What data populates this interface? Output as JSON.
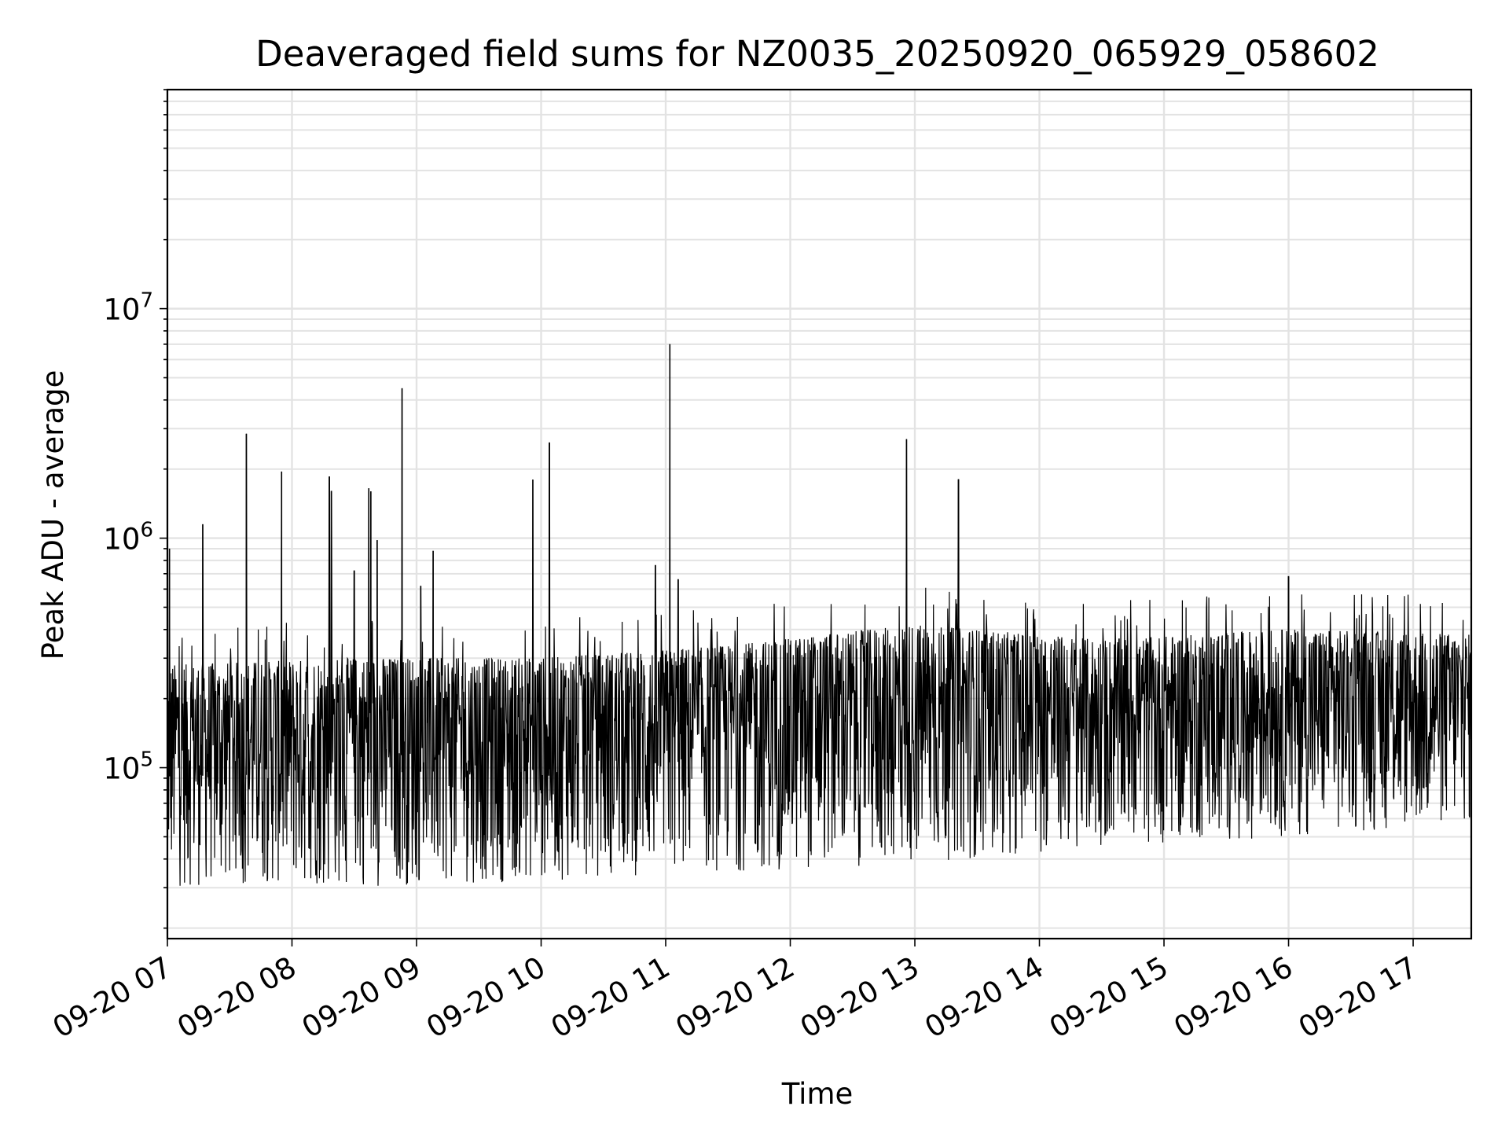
{
  "chart_data": {
    "type": "line",
    "title": "Deaveraged field sums for NZ0035_20250920_065929_058602",
    "xlabel": "Time",
    "ylabel": "Peak ADU - average",
    "y_scale": "log",
    "ylim": [
      18000,
      90000000
    ],
    "xlim": [
      "2025-09-20 07:00",
      "2025-09-20 17:28"
    ],
    "x_ticks": [
      "09-20 07",
      "09-20 08",
      "09-20 09",
      "09-20 10",
      "09-20 11",
      "09-20 12",
      "09-20 13",
      "09-20 14",
      "09-20 15",
      "09-20 16",
      "09-20 17"
    ],
    "y_ticks": [
      {
        "base": "10",
        "exp": "5"
      },
      {
        "base": "10",
        "exp": "6"
      },
      {
        "base": "10",
        "exp": "7"
      }
    ],
    "grid": true,
    "line_color": "#000000",
    "grid_color": "#e3e3e3",
    "baseline_segments": [
      {
        "x": "2025-09-20 07:00",
        "low": 30000,
        "high": 280000
      },
      {
        "x": "2025-09-20 08:30",
        "low": 30000,
        "high": 300000
      },
      {
        "x": "2025-09-20 10:00",
        "low": 32000,
        "high": 300000
      },
      {
        "x": "2025-09-20 11:30",
        "low": 35000,
        "high": 340000
      },
      {
        "x": "2025-09-20 13:00",
        "low": 38000,
        "high": 420000
      },
      {
        "x": "2025-09-20 14:30",
        "low": 45000,
        "high": 360000
      },
      {
        "x": "2025-09-20 16:00",
        "low": 50000,
        "high": 400000
      },
      {
        "x": "2025-09-20 17:28",
        "low": 55000,
        "high": 380000
      }
    ],
    "spikes": [
      {
        "x": "2025-09-20 07:01",
        "y": 900000
      },
      {
        "x": "2025-09-20 07:17",
        "y": 1150000
      },
      {
        "x": "2025-09-20 07:38",
        "y": 2850000
      },
      {
        "x": "2025-09-20 07:55",
        "y": 1950000
      },
      {
        "x": "2025-09-20 08:18",
        "y": 1850000
      },
      {
        "x": "2025-09-20 08:19",
        "y": 1600000
      },
      {
        "x": "2025-09-20 08:30",
        "y": 720000
      },
      {
        "x": "2025-09-20 08:37",
        "y": 1650000
      },
      {
        "x": "2025-09-20 08:38",
        "y": 1600000
      },
      {
        "x": "2025-09-20 08:41",
        "y": 980000
      },
      {
        "x": "2025-09-20 08:53",
        "y": 4500000
      },
      {
        "x": "2025-09-20 09:02",
        "y": 620000
      },
      {
        "x": "2025-09-20 09:08",
        "y": 880000
      },
      {
        "x": "2025-09-20 09:56",
        "y": 1800000
      },
      {
        "x": "2025-09-20 10:04",
        "y": 2600000
      },
      {
        "x": "2025-09-20 10:55",
        "y": 760000
      },
      {
        "x": "2025-09-20 11:02",
        "y": 7000000
      },
      {
        "x": "2025-09-20 11:06",
        "y": 660000
      },
      {
        "x": "2025-09-20 12:56",
        "y": 2700000
      },
      {
        "x": "2025-09-20 13:21",
        "y": 1800000
      },
      {
        "x": "2025-09-20 16:00",
        "y": 680000
      }
    ]
  }
}
